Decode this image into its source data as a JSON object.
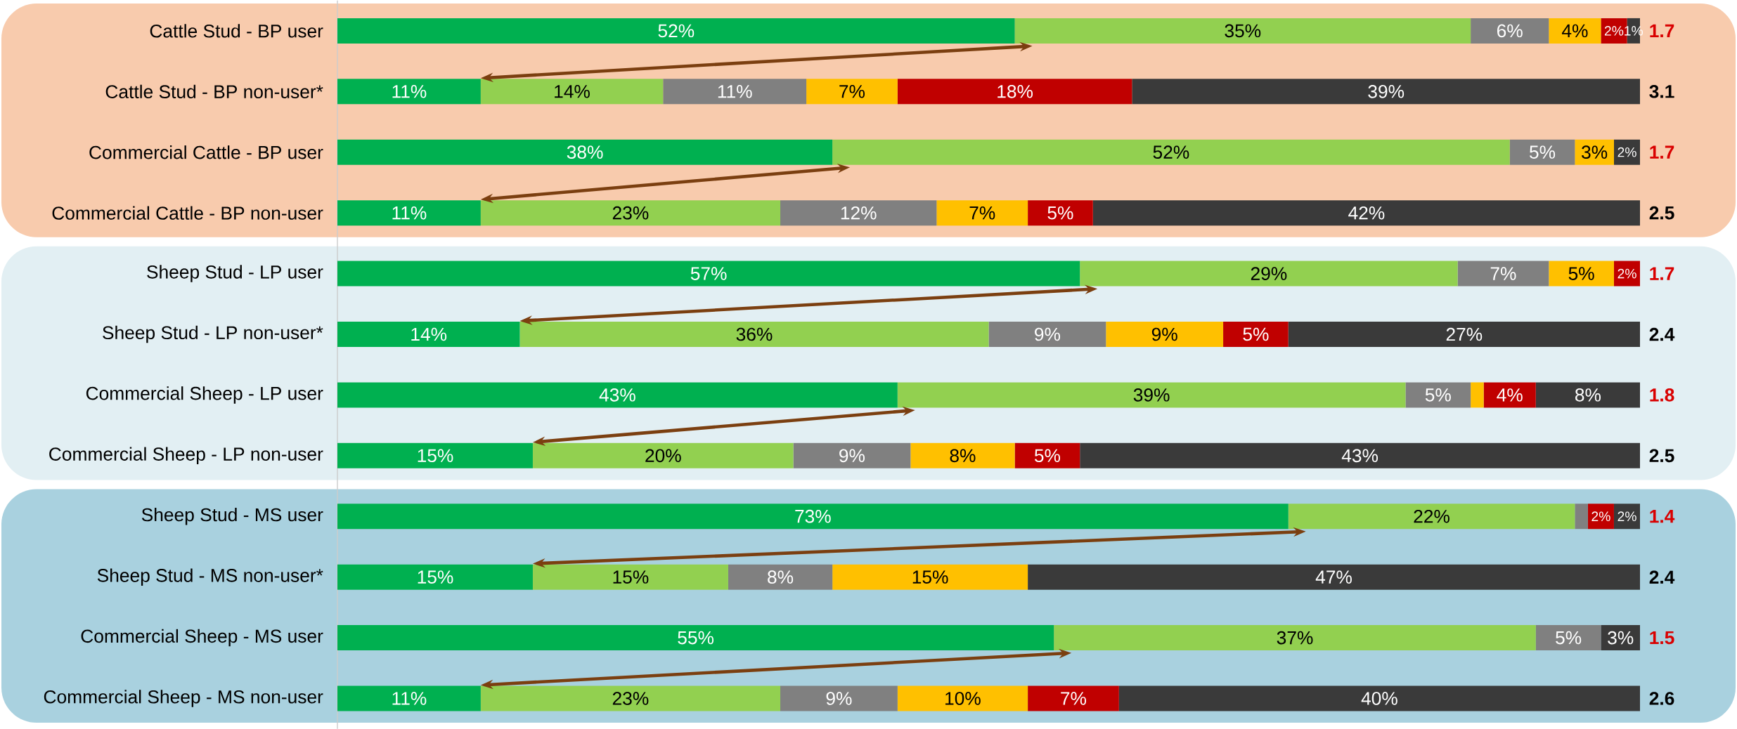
{
  "chart_data": {
    "type": "bar",
    "orientation": "horizontal",
    "stacked": true,
    "xlim": [
      0,
      100
    ],
    "tick_labels": "y",
    "categories": [
      "Cattle Stud - BP user",
      "Cattle Stud - BP non-user*",
      "Commercial Cattle - BP user",
      "Commercial Cattle - BP non-user",
      "Sheep Stud - LP user",
      "Sheep Stud - LP non-user*",
      "Commercial Sheep - LP user",
      "Commercial Sheep - LP non-user",
      "Sheep Stud - MS user",
      "Sheep Stud - MS non-user*",
      "Commercial Sheep - MS user",
      "Commercial Sheep - MS non-user"
    ],
    "series": [
      {
        "color": "#00b050",
        "values": [
          52,
          11,
          38,
          11,
          57,
          14,
          43,
          15,
          73,
          15,
          55,
          11
        ],
        "value_labels": [
          "52%",
          "11%",
          "38%",
          "11%",
          "57%",
          "14%",
          "43%",
          "15%",
          "73%",
          "15%",
          "55%",
          "11%"
        ]
      },
      {
        "color": "#92d050",
        "values": [
          35,
          14,
          52,
          23,
          29,
          36,
          39,
          20,
          22,
          15,
          37,
          23
        ],
        "value_labels": [
          "35%",
          "14%",
          "52%",
          "23%",
          "29%",
          "36%",
          "39%",
          "20%",
          "22%",
          "15%",
          "37%",
          "23%"
        ]
      },
      {
        "color": "#808080",
        "values": [
          6,
          11,
          5,
          12,
          7,
          9,
          5,
          9,
          1,
          8,
          5,
          9
        ],
        "value_labels": [
          "6%",
          "11%",
          "5%",
          "12%",
          "7%",
          "9%",
          "5%",
          "9%",
          null,
          "8%",
          "5%",
          "9%"
        ]
      },
      {
        "color": "#ffc000",
        "values": [
          4,
          7,
          3,
          7,
          5,
          9,
          1,
          8,
          0,
          15,
          0,
          10
        ],
        "value_labels": [
          "4%",
          "7%",
          "3%",
          "7%",
          "5%",
          "9%",
          null,
          "8%",
          null,
          "15%",
          null,
          "10%"
        ]
      },
      {
        "color": "#c00000",
        "values": [
          2,
          18,
          0,
          5,
          2,
          5,
          4,
          5,
          2,
          0,
          0,
          7
        ],
        "value_labels": [
          "2%",
          "18%",
          null,
          "5%",
          "2%",
          "5%",
          "4%",
          "5%",
          "2%",
          null,
          null,
          "7%"
        ]
      },
      {
        "color": "#3a3a3a",
        "values": [
          1,
          39,
          2,
          42,
          0,
          27,
          8,
          43,
          2,
          47,
          3,
          40
        ],
        "value_labels": [
          "1%",
          "39%",
          "2%",
          "42%",
          null,
          "27%",
          "8%",
          "43%",
          "2%",
          "47%",
          "3%",
          "40%"
        ]
      }
    ],
    "annotations": [
      "1.7",
      "3.1",
      "1.7",
      "2.5",
      "1.7",
      "2.4",
      "1.8",
      "2.5",
      "1.4",
      "2.4",
      "1.5",
      "2.6"
    ],
    "bands": [
      {
        "axis": "y",
        "from": "Cattle Stud - BP user",
        "to": "Commercial Cattle - BP non-user",
        "color": "#f8cbad"
      },
      {
        "axis": "y",
        "from": "Sheep Stud - LP user",
        "to": "Commercial Sheep - LP non-user",
        "color": "#e2eff3"
      },
      {
        "axis": "y",
        "from": "Sheep Stud - MS user",
        "to": "Commercial Sheep - MS non-user",
        "color": "#a9d1df"
      }
    ]
  }
}
